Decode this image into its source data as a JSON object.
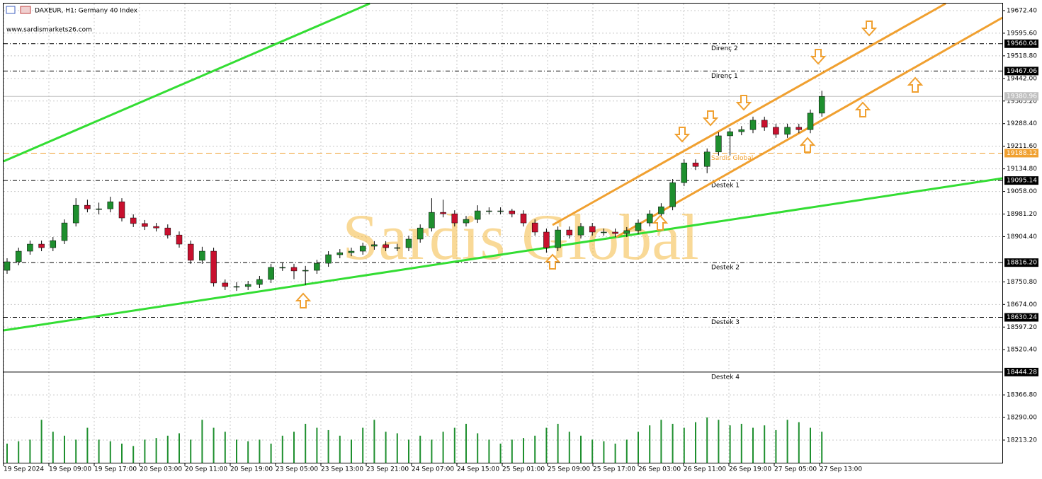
{
  "chart_data": {
    "type": "candlestick",
    "title": "DAXEUR, H1:  Germany 40 Index",
    "subtitle": "www.sardismarkets26.com",
    "watermark": "Sardis Global",
    "x_labels": [
      "19 Sep 2024",
      "19 Sep 09:00",
      "19 Sep 17:00",
      "20 Sep 03:00",
      "20 Sep 11:00",
      "20 Sep 19:00",
      "23 Sep 05:00",
      "23 Sep 13:00",
      "23 Sep 21:00",
      "24 Sep 07:00",
      "24 Sep 15:00",
      "25 Sep 01:00",
      "25 Sep 09:00",
      "25 Sep 17:00",
      "26 Sep 03:00",
      "26 Sep 11:00",
      "26 Sep 19:00",
      "27 Sep 05:00",
      "27 Sep 13:00"
    ],
    "open": [
      18790,
      18819,
      18855,
      18879,
      18867,
      18891,
      18951,
      19011,
      18999,
      18999,
      19023,
      18968,
      18949,
      18939,
      18934,
      18910,
      18879,
      18824,
      18855,
      18747,
      18735,
      18735,
      18742,
      18759,
      18800,
      18800,
      18788,
      18790,
      18814,
      18843,
      18850,
      18855,
      18872,
      18877,
      18867,
      18867,
      18896,
      18934,
      18987,
      18982,
      18951,
      18963,
      18992,
      18992,
      18992,
      18982,
      18951,
      18920,
      18867,
      18927,
      18910,
      18939,
      18920,
      18920,
      18915,
      18925,
      18951,
      18982,
      19006,
      19088,
      19155,
      19143,
      19192,
      19247,
      19261,
      19268,
      19300,
      19276,
      19252,
      19276,
      19268,
      19324
    ],
    "high": [
      18831,
      18867,
      18891,
      18891,
      18903,
      18963,
      19035,
      19030,
      19020,
      19040,
      19035,
      18980,
      18961,
      18951,
      18946,
      18922,
      18891,
      18870,
      18867,
      18759,
      18750,
      18754,
      18771,
      18812,
      18815,
      18812,
      18805,
      18826,
      18855,
      18862,
      18867,
      18884,
      18889,
      18889,
      18880,
      18908,
      18946,
      19035,
      19030,
      18994,
      18975,
      19011,
      19004,
      19004,
      18999,
      18994,
      18963,
      18932,
      18939,
      18939,
      18951,
      18951,
      18932,
      18932,
      18937,
      18963,
      18994,
      19018,
      19100,
      19167,
      19167,
      19204,
      19259,
      19273,
      19280,
      19312,
      19312,
      19288,
      19288,
      19288,
      19336,
      19400
    ],
    "low": [
      18778,
      18807,
      18843,
      18855,
      18855,
      18879,
      18939,
      18987,
      18980,
      18987,
      18956,
      18937,
      18927,
      18922,
      18898,
      18867,
      18812,
      18812,
      18735,
      18723,
      18720,
      18723,
      18730,
      18747,
      18788,
      18760,
      18740,
      18778,
      18802,
      18831,
      18838,
      18843,
      18860,
      18855,
      18855,
      18855,
      18884,
      18922,
      18970,
      18939,
      18939,
      18951,
      18980,
      18980,
      18970,
      18939,
      18908,
      18850,
      18855,
      18898,
      18898,
      18908,
      18908,
      18903,
      18903,
      18913,
      18939,
      18970,
      18994,
      19076,
      19131,
      19120,
      19180,
      19180,
      19249,
      19256,
      19264,
      19240,
      19240,
      19256,
      19256,
      19312
    ],
    "close": [
      18819,
      18855,
      18879,
      18867,
      18891,
      18951,
      19011,
      18999,
      18999,
      19023,
      18968,
      18949,
      18939,
      18934,
      18910,
      18879,
      18824,
      18855,
      18747,
      18735,
      18735,
      18742,
      18759,
      18800,
      18800,
      18788,
      18790,
      18814,
      18843,
      18850,
      18855,
      18872,
      18877,
      18867,
      18867,
      18896,
      18934,
      18987,
      18982,
      18951,
      18963,
      18992,
      18992,
      18992,
      18982,
      18951,
      18920,
      18867,
      18927,
      18910,
      18939,
      18920,
      18920,
      18915,
      18925,
      18951,
      18982,
      19006,
      19088,
      19155,
      19143,
      19192,
      19247,
      19261,
      19268,
      19300,
      19276,
      19252,
      19276,
      19268,
      19324,
      19381
    ],
    "volume": [
      25,
      28,
      30,
      55,
      40,
      35,
      30,
      45,
      30,
      28,
      25,
      22,
      30,
      32,
      35,
      38,
      30,
      55,
      45,
      40,
      30,
      28,
      30,
      25,
      35,
      40,
      50,
      45,
      42,
      35,
      30,
      45,
      55,
      40,
      38,
      30,
      35,
      30,
      40,
      45,
      50,
      38,
      30,
      25,
      30,
      32,
      35,
      45,
      50,
      40,
      35,
      30,
      28,
      25,
      30,
      40,
      48,
      55,
      50,
      45,
      52,
      58,
      55,
      48,
      50,
      45,
      48,
      42,
      55,
      52,
      45,
      40
    ],
    "up_color": "#1e8f2e",
    "down_color": "#c8102e",
    "volume_color": "#1e8f2e",
    "ylim": [
      18133.9,
      19696.4
    ],
    "yticks": [
      {
        "value": 19672.4,
        "label": "19672.40"
      },
      {
        "value": 19595.6,
        "label": "19595.60"
      },
      {
        "value": 19518.8,
        "label": "19518.80"
      },
      {
        "value": 19442,
        "label": "19442.00"
      },
      {
        "value": 19365.2,
        "label": "19365.20"
      },
      {
        "value": 19288.4,
        "label": "19288.40"
      },
      {
        "value": 19211.6,
        "label": "19211.60"
      },
      {
        "value": 19134.8,
        "label": "19134.80"
      },
      {
        "value": 19058,
        "label": "19058.00"
      },
      {
        "value": 18981.2,
        "label": "18981.20"
      },
      {
        "value": 18904.4,
        "label": "18904.40"
      },
      {
        "value": 18750.8,
        "label": "18750.80"
      },
      {
        "value": 18674,
        "label": "18674.00"
      },
      {
        "value": 18597.2,
        "label": "18597.20"
      },
      {
        "value": 18520.4,
        "label": "18520.40"
      },
      {
        "value": 18366.8,
        "label": "18366.80"
      },
      {
        "value": 18290,
        "label": "18290.00"
      },
      {
        "value": 18213.2,
        "label": "18213.20"
      }
    ],
    "grid": true,
    "levels": [
      {
        "name": "Direnç 2",
        "value": 19560.04,
        "label": "19560.04",
        "style": "dashdot",
        "color": "#000000"
      },
      {
        "name": "Direnç 1",
        "value": 19467.06,
        "label": "19467.06",
        "style": "dashdot",
        "color": "#000000"
      },
      {
        "value": 19380.96,
        "label": "19380.96",
        "style": "solid",
        "color": "#c0c0c0"
      },
      {
        "name": "Sardis Global",
        "value": 19188.12,
        "label": "19188.12",
        "style": "dashed",
        "color": "#f0a030"
      },
      {
        "name": "Destek 1",
        "value": 19095.14,
        "label": "19095.14",
        "style": "dashdot",
        "color": "#000000"
      },
      {
        "name": "Destek 2",
        "value": 18816.2,
        "label": "18816.20",
        "style": "dashdot",
        "color": "#000000"
      },
      {
        "name": "Destek 3",
        "value": 18630.24,
        "label": "18630.24",
        "style": "dashdot",
        "color": "#000000"
      },
      {
        "name": "Destek 4",
        "value": 18444.28,
        "label": "18444.28",
        "style": "solid",
        "color": "#000000"
      }
    ]
  }
}
